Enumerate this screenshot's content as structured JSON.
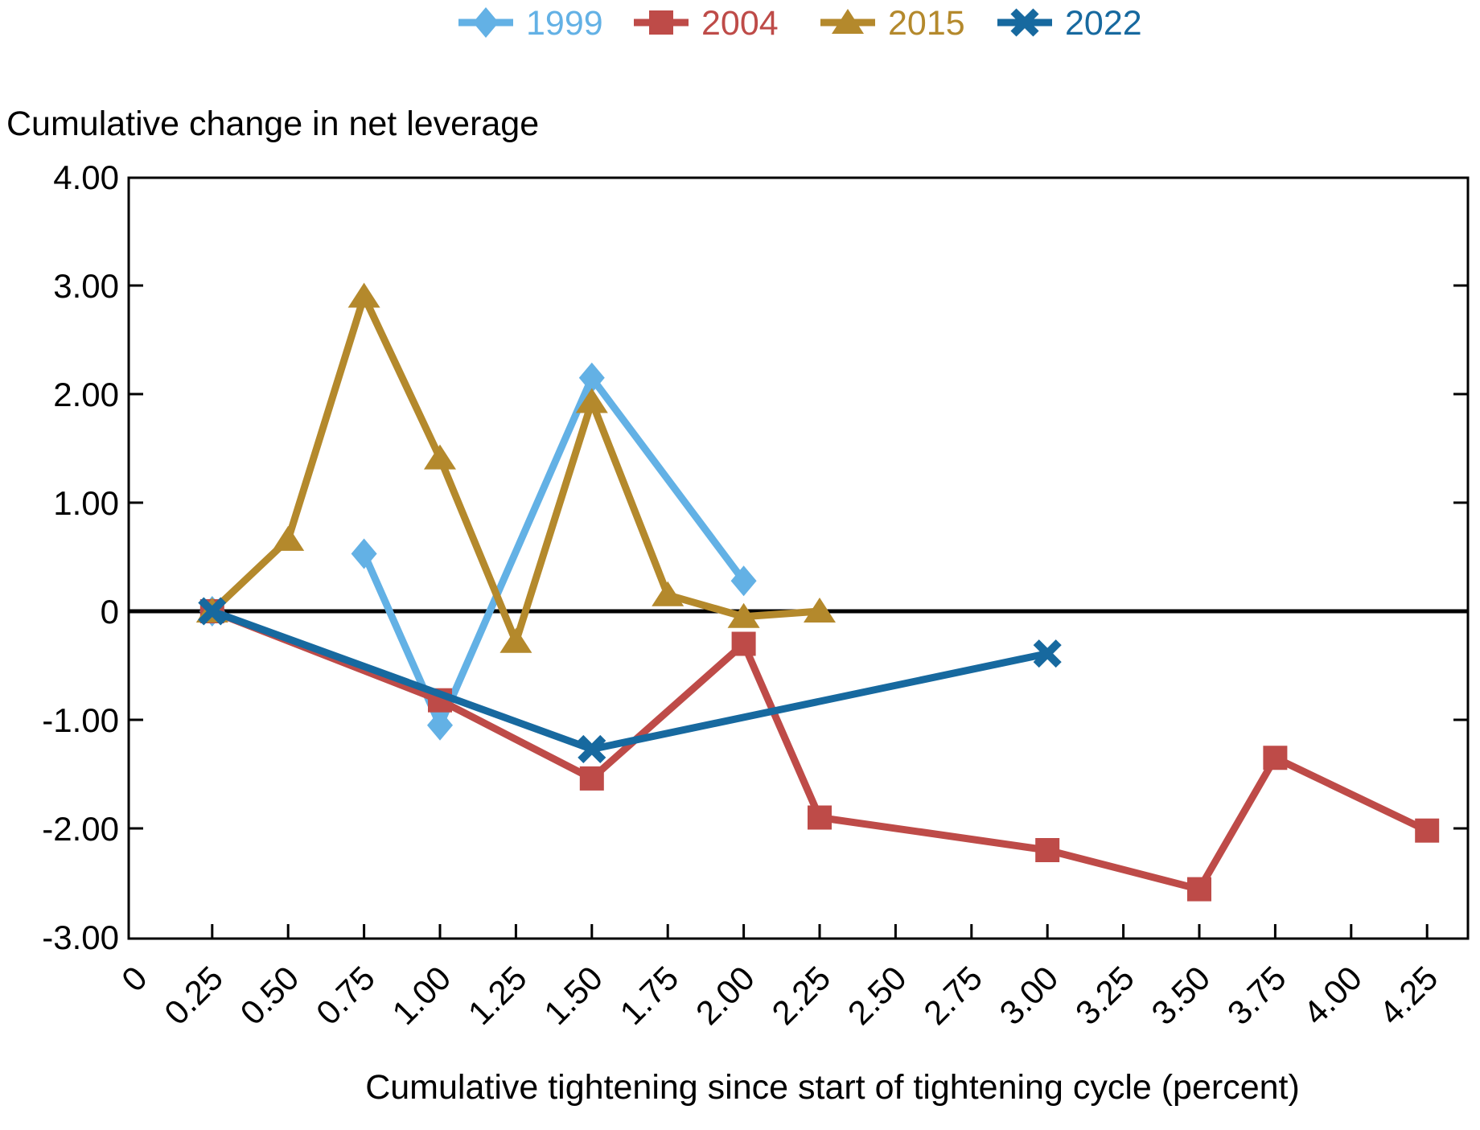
{
  "chart_data": {
    "type": "line",
    "title": "Cumulative change in net leverage",
    "xlabel": "Cumulative tightening since start of tightening cycle (percent)",
    "ylabel": "Cumulative change in net leverage",
    "xlim": [
      0,
      4.39
    ],
    "ylim": [
      -3.0,
      4.0
    ],
    "grid": false,
    "zero_line": true,
    "legend_position": "top-center",
    "axis_color": "#000000",
    "background_color": "#ffffff",
    "y_tick_values": [
      4.0,
      3.0,
      2.0,
      1.0,
      0.0,
      -1.0,
      -2.0,
      -3.0
    ],
    "y_tick_labels": [
      "4.00",
      "3.00",
      "2.00",
      "1.00",
      "0",
      "-1.00",
      "-2.00",
      "-3.00"
    ],
    "x_tick_values": [
      0,
      0.25,
      0.5,
      0.75,
      1.0,
      1.25,
      1.5,
      1.75,
      2.0,
      2.25,
      2.5,
      2.75,
      3.0,
      3.25,
      3.5,
      3.75,
      4.0,
      4.25
    ],
    "x_tick_labels": [
      "0",
      "0.25",
      "0.50",
      "0.75",
      "1.00",
      "1.25",
      "1.50",
      "1.75",
      "2.00",
      "2.25",
      "2.50",
      "2.75",
      "3.00",
      "3.25",
      "3.50",
      "3.75",
      "4.00",
      "4.25"
    ],
    "series": [
      {
        "name": "1999",
        "color": "#63B1E5",
        "marker": "diamond",
        "points": [
          [
            0.25,
            0.0
          ],
          [
            0.75,
            0.53
          ],
          [
            1.0,
            -1.05
          ],
          [
            1.5,
            2.15
          ],
          [
            2.0,
            0.28
          ]
        ],
        "segments": [
          [
            1,
            2,
            3,
            4
          ]
        ],
        "note": "marker at 0.25 is isolated (no connecting line to 0.75)"
      },
      {
        "name": "2004",
        "color": "#BE4B48",
        "marker": "square",
        "points": [
          [
            0.25,
            0.0
          ],
          [
            1.0,
            -0.82
          ],
          [
            1.5,
            -1.54
          ],
          [
            2.0,
            -0.3
          ],
          [
            2.25,
            -1.9
          ],
          [
            3.0,
            -2.2
          ],
          [
            3.5,
            -2.56
          ],
          [
            3.75,
            -1.35
          ],
          [
            4.25,
            -2.02
          ]
        ],
        "segments": [
          [
            0,
            1,
            2,
            3,
            4,
            5,
            6,
            7,
            8
          ]
        ]
      },
      {
        "name": "2015",
        "color": "#B4892C",
        "marker": "triangle",
        "points": [
          [
            0.25,
            0.0
          ],
          [
            0.5,
            0.66
          ],
          [
            0.75,
            2.9
          ],
          [
            1.0,
            1.41
          ],
          [
            1.25,
            -0.28
          ],
          [
            1.5,
            1.93
          ],
          [
            1.75,
            0.15
          ],
          [
            2.0,
            -0.05
          ],
          [
            2.25,
            0.0
          ]
        ],
        "segments": [
          [
            0,
            1,
            2,
            3,
            4,
            5,
            6,
            7,
            8
          ]
        ]
      },
      {
        "name": "2022",
        "color": "#17699F",
        "marker": "x",
        "points": [
          [
            0.25,
            0.0
          ],
          [
            1.5,
            -1.27
          ],
          [
            3.0,
            -0.39
          ]
        ],
        "segments": [
          [
            0,
            1,
            2
          ]
        ]
      }
    ]
  }
}
